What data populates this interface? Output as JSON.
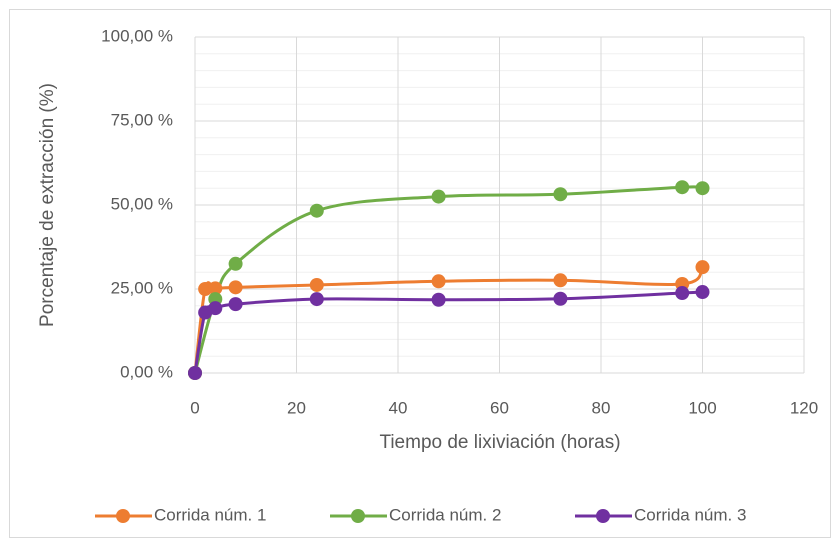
{
  "chart_data": {
    "type": "scatter",
    "x_label": "Tiempo de lixiviación (horas)",
    "y_label": "Porcentaje de extracción (%)",
    "xlim": [
      0,
      120
    ],
    "xticks": [
      0,
      20,
      40,
      60,
      80,
      100,
      120
    ],
    "ylim": [
      0,
      100
    ],
    "yticks": [
      {
        "value": 0,
        "label": "0,00 %"
      },
      {
        "value": 25,
        "label": "25,00 %"
      },
      {
        "value": 50,
        "label": "50,00 %"
      },
      {
        "value": 75,
        "label": "75,00 %"
      },
      {
        "value": 100,
        "label": "100,00 %"
      }
    ],
    "yminorticks": [
      5,
      10,
      15,
      20,
      30,
      35,
      40,
      45,
      55,
      60,
      65,
      70,
      80,
      85,
      90,
      95
    ],
    "grid": true,
    "smooth": true,
    "legend": "bottom",
    "series": [
      {
        "name": "Corrida núm. 1",
        "color": "#ed7d31",
        "x": [
          0,
          2,
          4,
          8,
          24,
          48,
          72,
          96,
          100
        ],
        "values": [
          0,
          25,
          25.2,
          25.5,
          26.2,
          27.3,
          27.6,
          26.5,
          31.5
        ]
      },
      {
        "name": "Corrida núm. 2",
        "color": "#70ad47",
        "x": [
          0,
          4,
          8,
          24,
          48,
          72,
          96,
          100
        ],
        "values": [
          0,
          22,
          32.5,
          48.3,
          52.5,
          53.2,
          55.3,
          55
        ]
      },
      {
        "name": "Corrida núm. 3",
        "color": "#7030a0",
        "x": [
          0,
          2,
          4,
          8,
          24,
          48,
          72,
          96,
          100
        ],
        "values": [
          0,
          18,
          19.3,
          20.5,
          22,
          21.8,
          22.1,
          23.8,
          24.1
        ]
      }
    ]
  }
}
